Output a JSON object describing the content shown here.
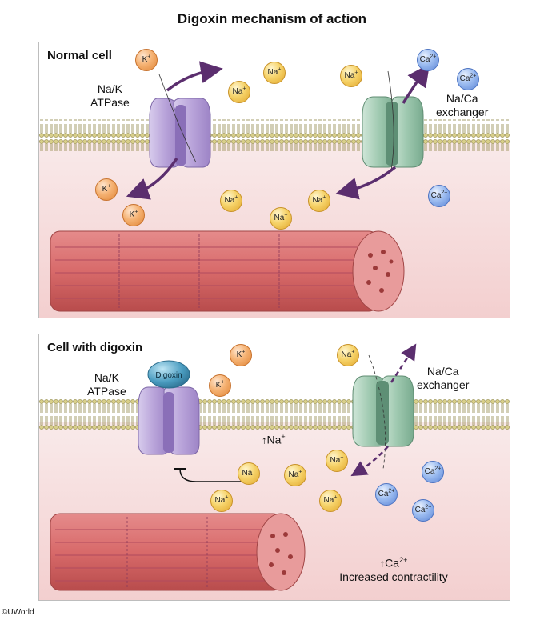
{
  "title": "Digoxin mechanism of action",
  "copyright": "©UWorld",
  "panels": {
    "normal": {
      "title": "Normal cell",
      "pump_label_line1": "Na/K",
      "pump_label_line2": "ATPase",
      "exchanger_label_line1": "Na/Ca",
      "exchanger_label_line2": "exchanger"
    },
    "digoxin": {
      "title": "Cell with digoxin",
      "pump_label_line1": "Na/K",
      "pump_label_line2": "ATPase",
      "exchanger_label_line1": "Na/Ca",
      "exchanger_label_line2": "exchanger",
      "drug_label": "Digoxin",
      "na_increase_text": "Na",
      "na_increase_charge": "+",
      "ca_increase_text": "Ca",
      "ca_increase_charge": "2+",
      "effect_text": "Increased contractility"
    }
  },
  "ions": {
    "na": "Na",
    "na_charge": "+",
    "k": "K",
    "k_charge": "+",
    "ca": "Ca",
    "ca_charge": "2+"
  },
  "colors": {
    "pump": "#b8a3d8",
    "exchanger": "#9cc9ae",
    "cytoplasm": "#f7dcdc",
    "membrane": "#c9c07a",
    "arrow": "#5b2e6e",
    "digoxin": "#4a9cc0",
    "muscle": "#d96b6b"
  }
}
